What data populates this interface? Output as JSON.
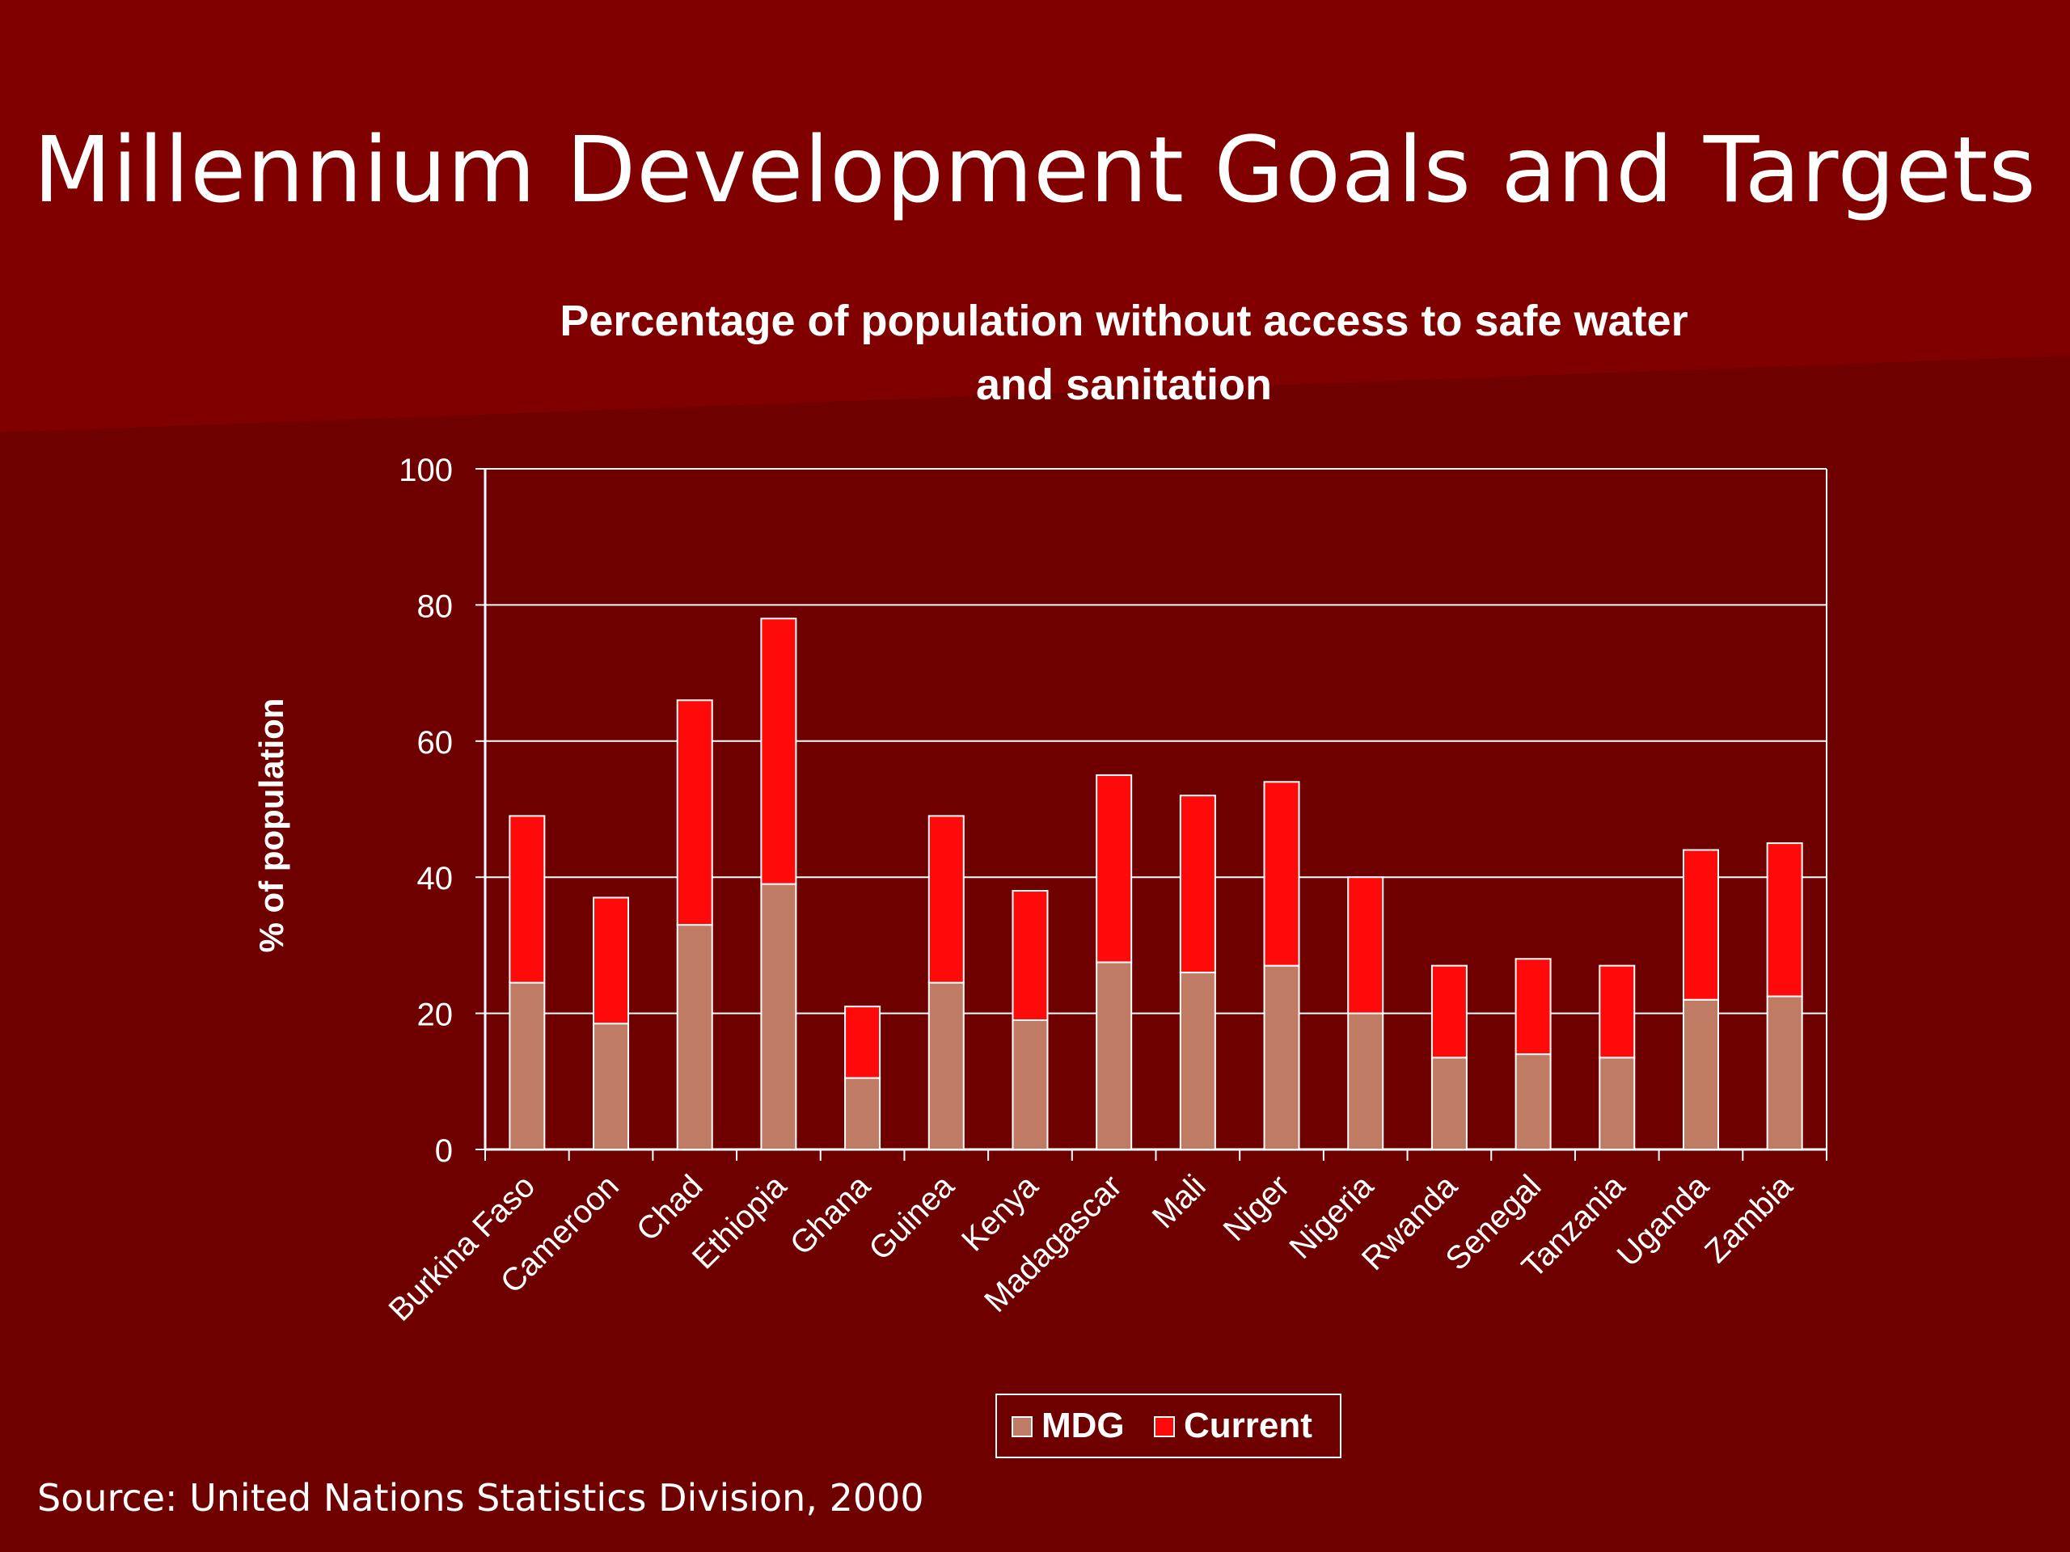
{
  "slide": {
    "title": "Millennium Development Goals and Targets",
    "source": "Source: United Nations Statistics Division, 2000"
  },
  "colors": {
    "background": "#6e0000",
    "background_accent": "#800000",
    "mdg": "#c07b64",
    "current": "#ff0a0a",
    "text": "#ffffff"
  },
  "chart_data": {
    "type": "bar",
    "stacked": true,
    "title": "Percentage of population without access to safe water and sanitation",
    "title_lines": [
      "Percentage of population without access to safe water",
      "and sanitation"
    ],
    "xlabel": "",
    "ylabel": "% of population",
    "ylim": [
      0,
      100
    ],
    "yticks": [
      0,
      20,
      40,
      60,
      80,
      100
    ],
    "grid": true,
    "legend_position": "bottom",
    "categories": [
      "Burkina Faso",
      "Cameroon",
      "Chad",
      "Ethiopia",
      "Ghana",
      "Guinea",
      "Kenya",
      "Madagascar",
      "Mali",
      "Niger",
      "Nigeria",
      "Rwanda",
      "Senegal",
      "Tanzania",
      "Uganda",
      "Zambia"
    ],
    "series": [
      {
        "name": "MDG",
        "color": "#c07b64",
        "values": [
          24.5,
          18.5,
          33,
          39,
          10.5,
          24.5,
          19,
          27.5,
          26,
          27,
          20,
          13.5,
          14,
          13.5,
          22,
          22.5
        ]
      },
      {
        "name": "Current",
        "color": "#ff0a0a",
        "values": [
          24.5,
          18.5,
          33,
          39,
          10.5,
          24.5,
          19,
          27.5,
          26,
          27,
          20,
          13.5,
          14,
          13.5,
          22,
          22.5
        ]
      }
    ]
  }
}
